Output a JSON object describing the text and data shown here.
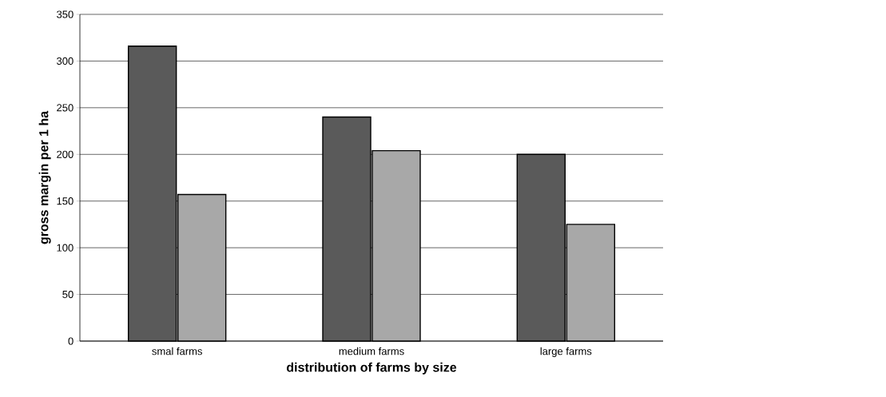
{
  "chart_data": {
    "type": "bar",
    "xlabel": "distribution of farms by size",
    "ylabel": "gross margin per 1 ha",
    "categories": [
      "smal farms",
      "medium farms",
      "large farms"
    ],
    "series": [
      {
        "color": "#5a5a5a",
        "values": [
          316,
          240,
          200
        ]
      },
      {
        "color": "#a8a8a8",
        "values": [
          157,
          204,
          125
        ]
      }
    ],
    "ylim": [
      0,
      350
    ],
    "yticks": [
      0,
      50,
      100,
      150,
      200,
      250,
      300,
      350
    ],
    "grid": "y"
  }
}
